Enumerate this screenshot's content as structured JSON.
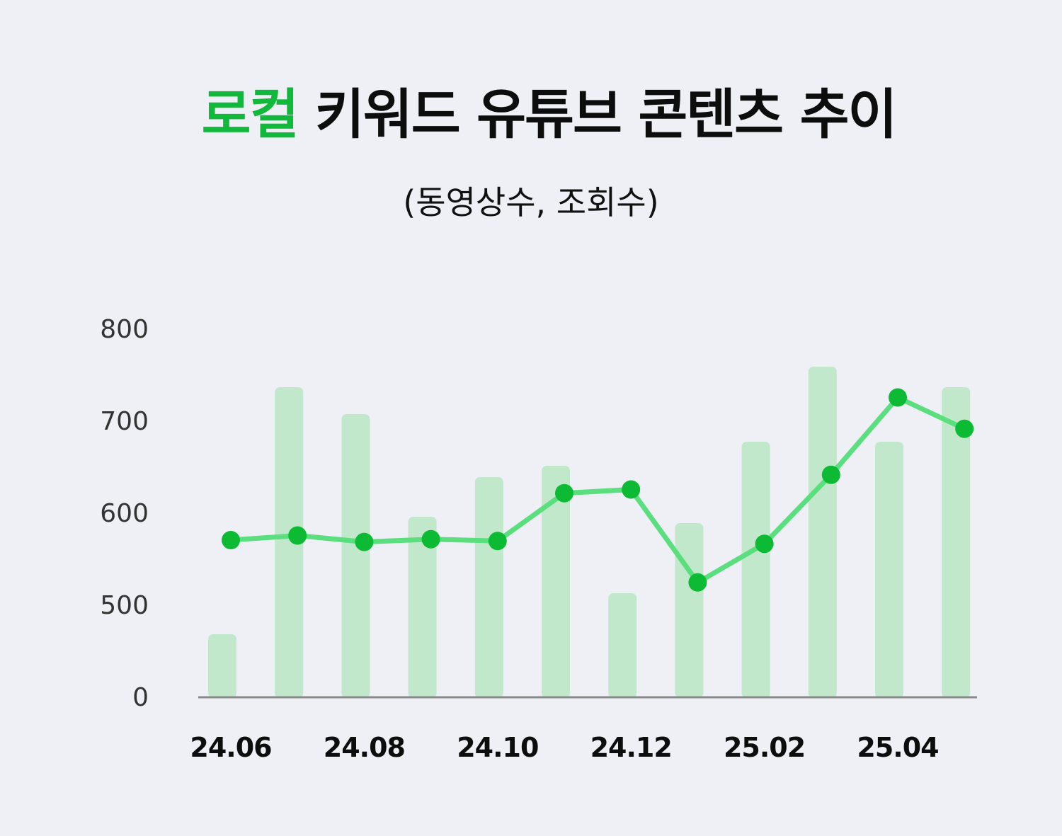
{
  "title": {
    "accent": "로컬",
    "rest": "키워드 유튜브 콘텐츠 추이"
  },
  "subtitle": "(동영상수, 조회수)",
  "colors": {
    "accent": "#10b93a",
    "bar": "#c2e8cc",
    "line": "#5ade7e",
    "point": "#0cba34",
    "axis": "#8a8a8a",
    "background": "#eef0f5"
  },
  "chart_data": {
    "type": "bar",
    "x": [
      "24.06",
      "24.07",
      "24.08",
      "24.09",
      "24.10",
      "24.11",
      "24.12",
      "25.01",
      "25.02",
      "25.03",
      "25.04",
      "25.05"
    ],
    "xtick_labels": [
      "24.06",
      "24.08",
      "24.10",
      "24.12",
      "25.02",
      "25.04"
    ],
    "ytick_labels": [
      "0",
      "500",
      "600",
      "700",
      "800"
    ],
    "ylim": [
      0,
      800
    ],
    "series": [
      {
        "type": "bar",
        "values": [
          88,
          437,
          399,
          254,
          310,
          326,
          146,
          245,
          360,
          466,
          360,
          437
        ]
      },
      {
        "type": "line",
        "values": [
          570,
          575,
          568,
          571,
          569,
          621,
          625,
          524,
          566,
          641,
          725,
          691
        ]
      }
    ],
    "grid": false
  }
}
